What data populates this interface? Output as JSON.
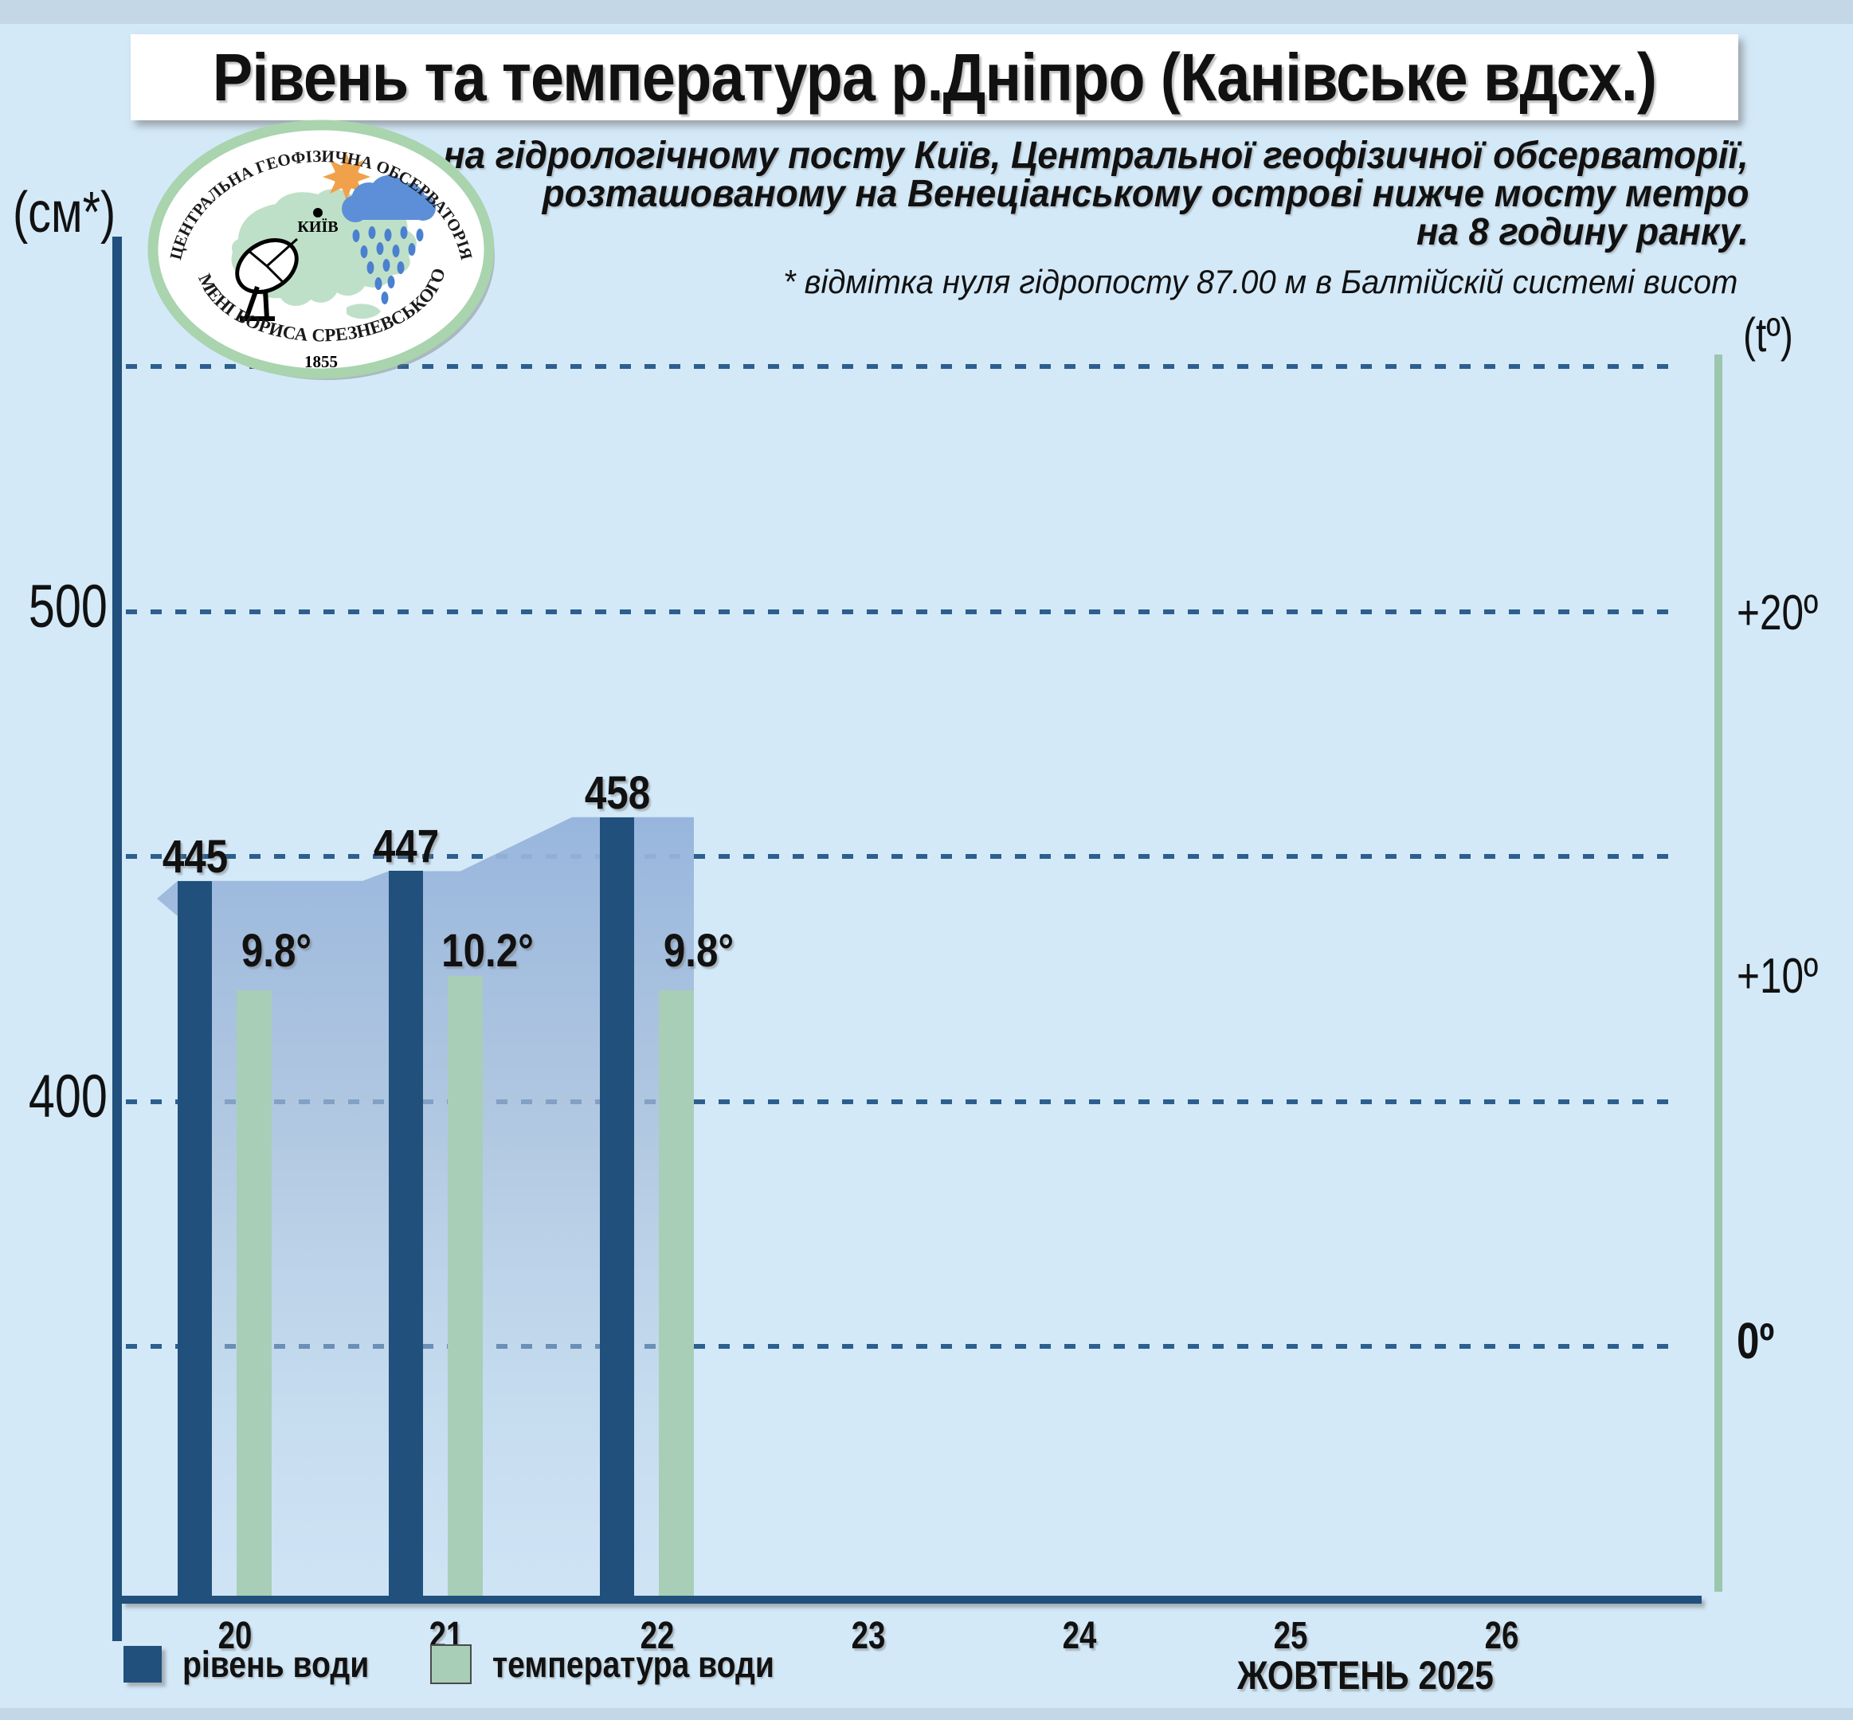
{
  "header": {
    "title": "Рівень та температура р.Дніпро (Канівське вдсх.)",
    "subtitle_lines": [
      "на гідрологічному посту Київ, Центральної геофізичної обсерваторії,",
      "розташованому на Венеціанському острові нижче мосту метро",
      "на 8 годину ранку."
    ],
    "footnote": "* відмітка нуля гідропосту 87.00 м в Балтійскій системі висот"
  },
  "logo": {
    "top_text": "ЦЕНТРАЛЬНА ГЕОФІЗИЧНА ОБСЕРВАТОРІЯ",
    "bottom_text": "ІМЕНІ БОРИСА СРЕЗНЕВСЬКОГО",
    "year": "1855",
    "city": "КИЇВ"
  },
  "chart_data": {
    "type": "bar",
    "title": "Рівень та температура р.Дніпро (Канівське вдсх.)",
    "x_label_month": "ЖОВТЕНЬ 2025",
    "days": [
      20,
      21,
      22,
      23,
      24,
      25,
      26
    ],
    "series": [
      {
        "name": "рівень води",
        "unit": "см",
        "color": "#21507c",
        "values": [
          445,
          447,
          458,
          null,
          null,
          null,
          null
        ]
      },
      {
        "name": "температура води",
        "unit": "°C",
        "color": "#a8ceb8",
        "values": [
          9.8,
          10.2,
          9.8,
          null,
          null,
          null,
          null
        ]
      }
    ],
    "left_axis": {
      "label": "(см*)",
      "unit": "см",
      "ticks": [
        500,
        400
      ],
      "gridlines": [
        550,
        500,
        450,
        400,
        350
      ],
      "range": [
        350,
        560
      ]
    },
    "right_axis": {
      "label": "(tº)",
      "ticks": [
        "+20º",
        "+10º",
        "0º"
      ],
      "tick_values": [
        20,
        10,
        0
      ],
      "range": [
        -7,
        27
      ]
    },
    "grid": "dashed horizontal",
    "legend_position": "bottom",
    "area_overlay": "water level area fill behind bars, days 20-22"
  },
  "legend": {
    "items": [
      {
        "label": "рівень води",
        "color": "#21507c"
      },
      {
        "label": "температура води",
        "color": "#a8ceb8"
      }
    ]
  },
  "colors": {
    "background": "#d3e9f8",
    "edge_strip": "#c3d7e7",
    "navy": "#21507c",
    "green_bar": "#a8ceb8",
    "green_axis": "#9cc6ae",
    "gridline": "#2d5f8e",
    "area_top": "#a5c0e2",
    "title_box": "#ffffff",
    "logo_ring": "#a9d4ae",
    "logo_map": "#bfe0c8",
    "logo_sun": "#f0a14a",
    "logo_cloud": "#5d8fd8",
    "logo_rain": "#4a80cf"
  }
}
